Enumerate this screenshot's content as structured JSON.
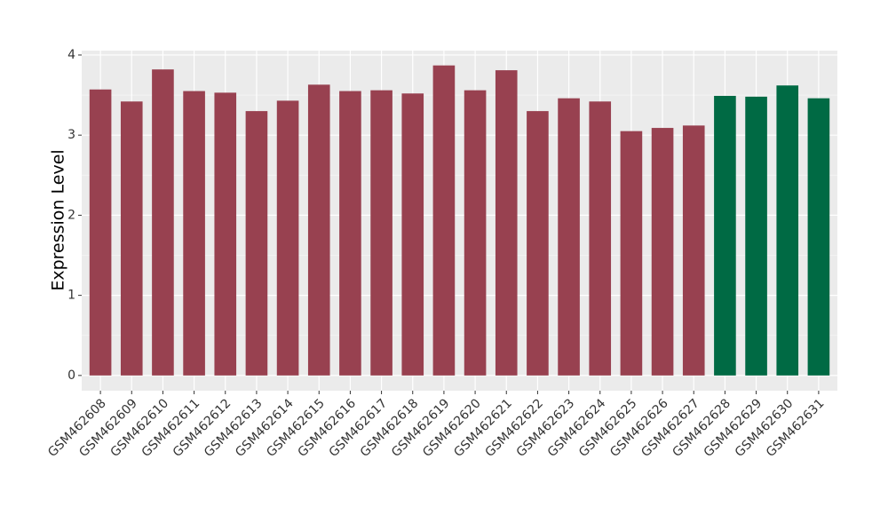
{
  "chart_data": {
    "type": "bar",
    "y_label": "Expression Level",
    "categories": [
      "GSM462608",
      "GSM462609",
      "GSM462610",
      "GSM462611",
      "GSM462612",
      "GSM462613",
      "GSM462614",
      "GSM462615",
      "GSM462616",
      "GSM462617",
      "GSM462618",
      "GSM462619",
      "GSM462620",
      "GSM462621",
      "GSM462622",
      "GSM462623",
      "GSM462624",
      "GSM462625",
      "GSM462626",
      "GSM462627",
      "GSM462628",
      "GSM462629",
      "GSM462630",
      "GSM462631"
    ],
    "values": [
      3.57,
      3.42,
      3.82,
      3.55,
      3.53,
      3.3,
      3.43,
      3.63,
      3.55,
      3.56,
      3.52,
      3.87,
      3.56,
      3.81,
      3.3,
      3.46,
      3.42,
      3.05,
      3.09,
      3.12,
      3.49,
      3.48,
      3.62,
      3.46
    ],
    "colors": [
      "#984150",
      "#984150",
      "#984150",
      "#984150",
      "#984150",
      "#984150",
      "#984150",
      "#984150",
      "#984150",
      "#984150",
      "#984150",
      "#984150",
      "#984150",
      "#984150",
      "#984150",
      "#984150",
      "#984150",
      "#984150",
      "#984150",
      "#984150",
      "#006a44",
      "#006a44",
      "#006a44",
      "#006a44"
    ],
    "ylim": [
      -0.19,
      4.055
    ],
    "yticks": [
      0,
      1,
      2,
      3,
      4
    ],
    "grid": true
  }
}
